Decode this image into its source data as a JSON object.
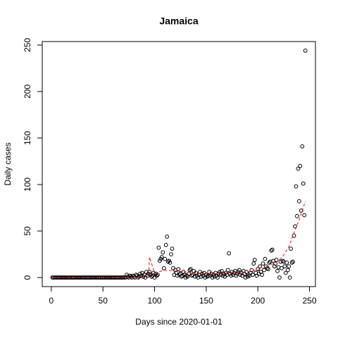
{
  "chart_data": {
    "type": "scatter",
    "title": "Jamaica",
    "x_label": "Days since 2020-01-01",
    "y_label": "Daily cases",
    "xlim": [
      -8.8,
      255.8
    ],
    "ylim": [
      -9.76,
      253.76
    ],
    "xticks": [
      0,
      50,
      100,
      150,
      200,
      250
    ],
    "yticks": [
      0,
      50,
      100,
      150,
      200,
      250
    ],
    "series": [
      {
        "style": "points",
        "color": "#000000",
        "x": [
          1,
          2,
          3,
          4,
          5,
          6,
          7,
          8,
          9,
          10,
          11,
          12,
          13,
          14,
          15,
          16,
          17,
          18,
          19,
          20,
          21,
          22,
          23,
          24,
          25,
          26,
          27,
          28,
          29,
          30,
          31,
          32,
          33,
          34,
          35,
          36,
          37,
          38,
          39,
          40,
          41,
          42,
          43,
          44,
          45,
          46,
          47,
          48,
          49,
          50,
          51,
          52,
          53,
          54,
          55,
          56,
          57,
          58,
          59,
          60,
          61,
          62,
          63,
          64,
          65,
          66,
          67,
          68,
          69,
          70,
          71,
          72,
          73,
          74,
          75,
          76,
          77,
          78,
          79,
          80,
          81,
          82,
          83,
          84,
          85,
          86,
          87,
          88,
          89,
          90,
          91,
          92,
          93,
          94,
          95,
          96,
          97,
          98,
          99,
          100,
          101,
          102,
          103,
          104,
          105,
          106,
          107,
          108,
          109,
          110,
          111,
          112,
          113,
          114,
          115,
          116,
          117,
          118,
          119,
          120,
          121,
          122,
          123,
          124,
          125,
          126,
          127,
          128,
          129,
          130,
          131,
          132,
          133,
          134,
          135,
          136,
          137,
          138,
          139,
          140,
          141,
          142,
          143,
          144,
          145,
          146,
          147,
          148,
          149,
          150,
          151,
          152,
          153,
          154,
          155,
          156,
          157,
          158,
          159,
          160,
          161,
          162,
          163,
          164,
          165,
          166,
          167,
          168,
          169,
          170,
          171,
          172,
          173,
          174,
          175,
          176,
          177,
          178,
          179,
          180,
          181,
          182,
          183,
          184,
          185,
          186,
          187,
          188,
          189,
          190,
          191,
          192,
          193,
          194,
          195,
          196,
          197,
          198,
          199,
          200,
          201,
          202,
          203,
          204,
          205,
          206,
          207,
          208,
          209,
          210,
          211,
          212,
          213,
          214,
          215,
          216,
          217,
          218,
          219,
          220,
          221,
          222,
          223,
          224,
          225,
          226,
          227,
          228,
          229,
          230,
          231,
          232,
          233,
          234,
          235,
          236,
          237,
          238,
          239,
          240,
          241,
          242,
          243,
          244,
          245,
          246
        ],
        "values": [
          0,
          0,
          0,
          0,
          0,
          0,
          0,
          0,
          0,
          0,
          0,
          0,
          0,
          0,
          0,
          0,
          0,
          0,
          0,
          0,
          0,
          0,
          0,
          0,
          0,
          0,
          0,
          0,
          0,
          0,
          0,
          0,
          0,
          0,
          0,
          0,
          0,
          0,
          0,
          0,
          0,
          0,
          0,
          0,
          0,
          0,
          0,
          0,
          0,
          0,
          0,
          0,
          0,
          0,
          0,
          0,
          0,
          0,
          0,
          0,
          0,
          0,
          0,
          0,
          0,
          0,
          0,
          0,
          0,
          0,
          0,
          0,
          3,
          1,
          0,
          2,
          1,
          0,
          2,
          1,
          0,
          3,
          2,
          0,
          1,
          4,
          2,
          5,
          1,
          3,
          0,
          6,
          2,
          4,
          6,
          3,
          1,
          2,
          5,
          0,
          4,
          2,
          3,
          32,
          18,
          20,
          22,
          27,
          10,
          20,
          35,
          44,
          17,
          18,
          16,
          25,
          31,
          10,
          3,
          8,
          5,
          2,
          9,
          3,
          4,
          1,
          2,
          6,
          3,
          0,
          2,
          1,
          4,
          8,
          9,
          2,
          3,
          7,
          1,
          5,
          2,
          0,
          3,
          6,
          1,
          4,
          2,
          5,
          0,
          3,
          1,
          2,
          6,
          2,
          4,
          0,
          3,
          1,
          5,
          2,
          0,
          4,
          6,
          3,
          7,
          2,
          4,
          1,
          5,
          3,
          8,
          26,
          4,
          2,
          6,
          3,
          5,
          7,
          2,
          4,
          6,
          8,
          3,
          5,
          2,
          7,
          4,
          0,
          6,
          1,
          3,
          2,
          5,
          8,
          3,
          15,
          19,
          5,
          2,
          9,
          4,
          12,
          6,
          3,
          15,
          8,
          20,
          12,
          10,
          9,
          16,
          17,
          29,
          30,
          18,
          12,
          15,
          19,
          7,
          11,
          0,
          17,
          10,
          18,
          17,
          12,
          5,
          16,
          8,
          12,
          0,
          31,
          16,
          17,
          45,
          55,
          98,
          66,
          117,
          82,
          120,
          72,
          141,
          101,
          67,
          244
        ]
      },
      {
        "style": "dashed-line",
        "color": "#ff0000",
        "x": [
          1,
          94,
          95,
          100,
          110,
          130,
          150,
          170,
          190,
          200,
          210,
          215,
          220,
          225,
          230,
          235,
          240,
          246
        ],
        "values": [
          0,
          0,
          22,
          5,
          8,
          6,
          4,
          5,
          6,
          8,
          12,
          15,
          18,
          24,
          33,
          48,
          62,
          82
        ]
      }
    ]
  }
}
